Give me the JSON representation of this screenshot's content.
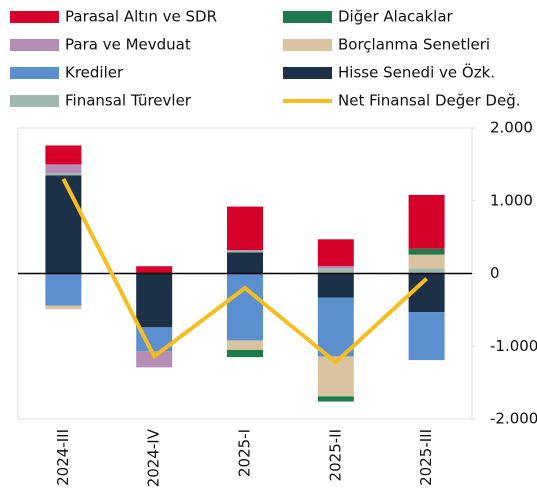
{
  "chart_data": {
    "type": "bar",
    "stacked": true,
    "categories": [
      "2024-III",
      "2024-IV",
      "2025-I",
      "2025-II",
      "2025-III"
    ],
    "series": [
      {
        "name": "Parasal Altın ve SDR",
        "color": "#d7002a",
        "values": [
          260,
          100,
          600,
          370,
          740
        ]
      },
      {
        "name": "Diğer Alacaklar",
        "color": "#1e7a4a",
        "values": [
          0,
          0,
          -100,
          -70,
          80
        ]
      },
      {
        "name": "Para ve Mevduat",
        "color": "#b58db5",
        "values": [
          120,
          -220,
          0,
          30,
          0
        ]
      },
      {
        "name": "Borçlanma Senetleri",
        "color": "#d9c3a0",
        "values": [
          -50,
          0,
          -130,
          -550,
          190
        ]
      },
      {
        "name": "Krediler",
        "color": "#5b8fd0",
        "values": [
          -440,
          -330,
          -920,
          -810,
          -660
        ]
      },
      {
        "name": "Hisse Senedi ve Özk.",
        "color": "#1c3048",
        "values": [
          1350,
          -740,
          290,
          -330,
          -530
        ]
      },
      {
        "name": "Finansal Türevler",
        "color": "#9fb8b0",
        "values": [
          30,
          0,
          30,
          70,
          70
        ]
      },
      {
        "name": "Net Finansal Değer Değ.",
        "color": "#f5be1e",
        "type": "line",
        "values": [
          1300,
          -1140,
          -200,
          -1220,
          -70
        ]
      }
    ],
    "ylim": [
      -2000,
      2000
    ],
    "yticks": [
      {
        "value": -2000,
        "label": "-2.000"
      },
      {
        "value": -1000,
        "label": "-1.000"
      },
      0,
      {
        "value": 1000,
        "label": "1.000"
      },
      {
        "value": 2000,
        "label": "2.000"
      }
    ],
    "y_axis_side": "right",
    "grid": false
  }
}
